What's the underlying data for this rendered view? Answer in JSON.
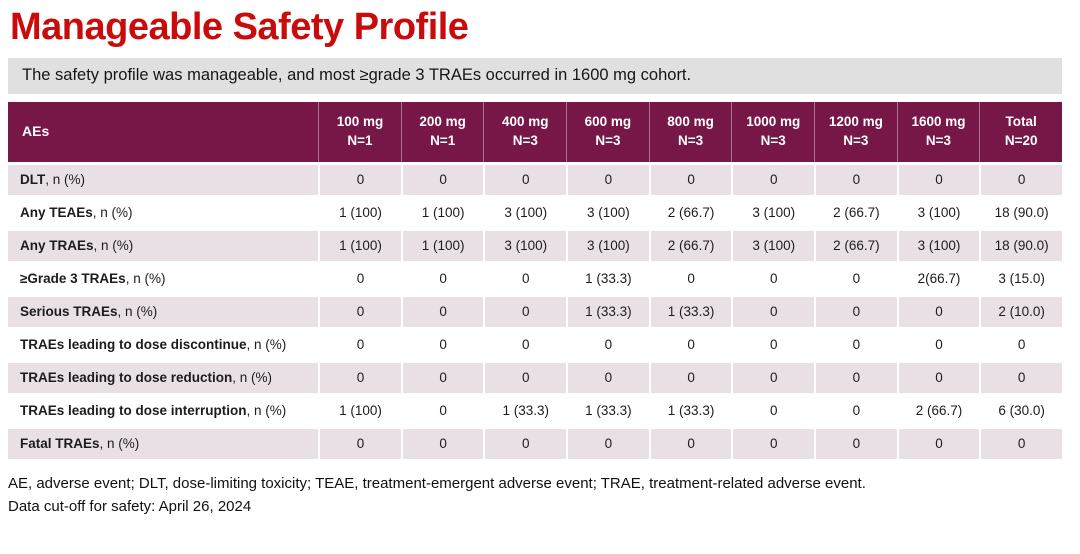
{
  "title": "Manageable Safety Profile",
  "subtitle": "The safety profile was manageable, and most ≥grade 3 TRAEs occurred in 1600 mg cohort.",
  "colors": {
    "title_red": "#C90B0B",
    "banner_gray": "#E0E0E0",
    "table_header_plum": "#761748",
    "row_pink": "#E9E0E6"
  },
  "table": {
    "header": {
      "aes_label": "AEs",
      "columns": [
        {
          "dose": "100 mg",
          "n": "N=1"
        },
        {
          "dose": "200 mg",
          "n": "N=1"
        },
        {
          "dose": "400 mg",
          "n": "N=3"
        },
        {
          "dose": "600 mg",
          "n": "N=3"
        },
        {
          "dose": "800 mg",
          "n": "N=3"
        },
        {
          "dose": "1000 mg",
          "n": "N=3"
        },
        {
          "dose": "1200 mg",
          "n": "N=3"
        },
        {
          "dose": "1600 mg",
          "n": "N=3"
        },
        {
          "dose": "Total",
          "n": "N=20"
        }
      ]
    },
    "rows": [
      {
        "label_bold": "DLT",
        "label_rest": ", n (%)",
        "values": [
          "0",
          "0",
          "0",
          "0",
          "0",
          "0",
          "0",
          "0",
          "0"
        ]
      },
      {
        "label_bold": "Any TEAEs",
        "label_rest": ", n (%)",
        "values": [
          "1 (100)",
          "1 (100)",
          "3 (100)",
          "3 (100)",
          "2 (66.7)",
          "3 (100)",
          "2 (66.7)",
          "3 (100)",
          "18 (90.0)"
        ]
      },
      {
        "label_bold": "Any TRAEs",
        "label_rest": ", n (%)",
        "values": [
          "1 (100)",
          "1 (100)",
          "3 (100)",
          "3 (100)",
          "2 (66.7)",
          "3 (100)",
          "2 (66.7)",
          "3 (100)",
          "18 (90.0)"
        ]
      },
      {
        "label_bold": "≥Grade 3 TRAEs",
        "label_rest": ", n (%)",
        "values": [
          "0",
          "0",
          "0",
          "1 (33.3)",
          "0",
          "0",
          "0",
          "2(66.7)",
          "3 (15.0)"
        ]
      },
      {
        "label_bold": "Serious TRAEs",
        "label_rest": ", n (%)",
        "values": [
          "0",
          "0",
          "0",
          "1 (33.3)",
          "1 (33.3)",
          "0",
          "0",
          "0",
          "2 (10.0)"
        ]
      },
      {
        "label_bold": "TRAEs leading to dose discontinue",
        "label_rest": ", n (%)",
        "values": [
          "0",
          "0",
          "0",
          "0",
          "0",
          "0",
          "0",
          "0",
          "0"
        ]
      },
      {
        "label_bold": "TRAEs leading to dose reduction",
        "label_rest": ", n (%)",
        "values": [
          "0",
          "0",
          "0",
          "0",
          "0",
          "0",
          "0",
          "0",
          "0"
        ]
      },
      {
        "label_bold": "TRAEs leading to dose interruption",
        "label_rest": ", n (%)",
        "values": [
          "1 (100)",
          "0",
          "1 (33.3)",
          "1 (33.3)",
          "1 (33.3)",
          "0",
          "0",
          "2 (66.7)",
          "6 (30.0)"
        ]
      },
      {
        "label_bold": "Fatal TRAEs",
        "label_rest": ", n (%)",
        "values": [
          "0",
          "0",
          "0",
          "0",
          "0",
          "0",
          "0",
          "0",
          "0"
        ]
      }
    ]
  },
  "footnotes": {
    "abbreviations": "AE, adverse event; DLT, dose-limiting toxicity; TEAE, treatment-emergent adverse event; TRAE, treatment-related adverse event.",
    "data_cutoff": "Data cut-off for safety: April 26, 2024"
  }
}
